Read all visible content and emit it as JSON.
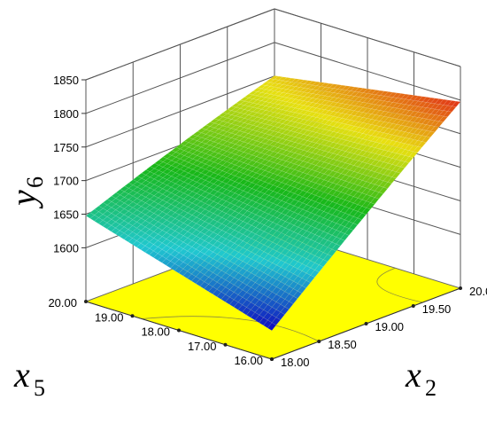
{
  "chart_data": {
    "type": "surface3d",
    "title": "",
    "x_axis": {
      "name": "x",
      "subscript": "2",
      "ticks": [
        "18.00",
        "18.50",
        "19.00",
        "19.50",
        "20.00"
      ],
      "range": [
        18.0,
        20.0
      ]
    },
    "y_axis": {
      "name": "x",
      "subscript": "5",
      "ticks": [
        "16.00",
        "17.00",
        "18.00",
        "19.00",
        "20.00"
      ],
      "range": [
        16.0,
        20.0
      ]
    },
    "z_axis": {
      "name": "y",
      "subscript": "6",
      "ticks": [
        "1600",
        "1650",
        "1700",
        "1750",
        "1800",
        "1850"
      ],
      "range": [
        1600,
        1850
      ]
    },
    "surface_corners": {
      "x2_18_x5_16": 1565,
      "x2_18_x5_20": 1650,
      "x2_20_x5_20": 1735,
      "x2_20_x5_16": 1800
    },
    "colormap": [
      "#1010c0",
      "#20c8d0",
      "#18b818",
      "#e8e010",
      "#e01818"
    ],
    "floor_color": "#ffff00",
    "grid": true
  }
}
